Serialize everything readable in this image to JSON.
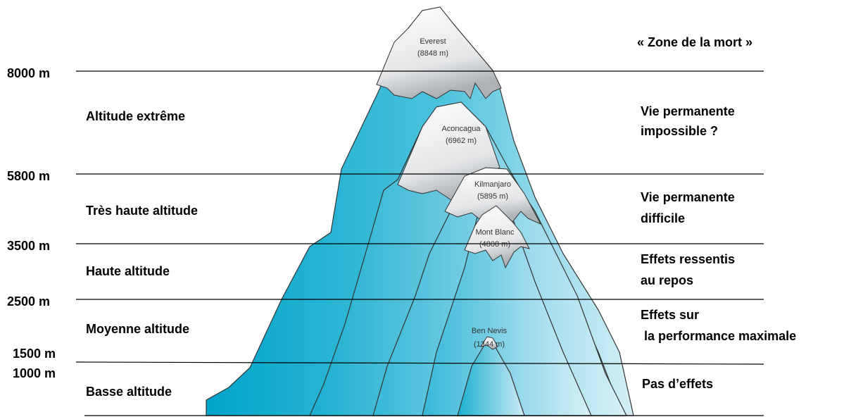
{
  "altitudes": [
    "8000 m",
    "5800 m",
    "3500 m",
    "2500 m",
    "1500 m",
    "1000 m"
  ],
  "zones": [
    "Altitude extrême",
    "Très haute altitude",
    "Haute altitude",
    "Moyenne altitude",
    "Basse altitude"
  ],
  "effects": [
    "« Zone de la mort »",
    "Vie permanente",
    "impossible ?",
    "Vie permanente",
    "difficile",
    "Effets ressentis",
    "au repos",
    "Effets sur",
    "la performance maximale",
    "Pas d’effets"
  ],
  "peaks": [
    {
      "name": "Everest",
      "height": "(8848 m)"
    },
    {
      "name": "Aconcagua",
      "height": "(6962 m)"
    },
    {
      "name": "Kilmanjaro",
      "height": "(5895 m)"
    },
    {
      "name": "Mont Blanc",
      "height": "(4808 m)"
    },
    {
      "name": "Ben Nevis",
      "height": "(1344 m)"
    }
  ]
}
